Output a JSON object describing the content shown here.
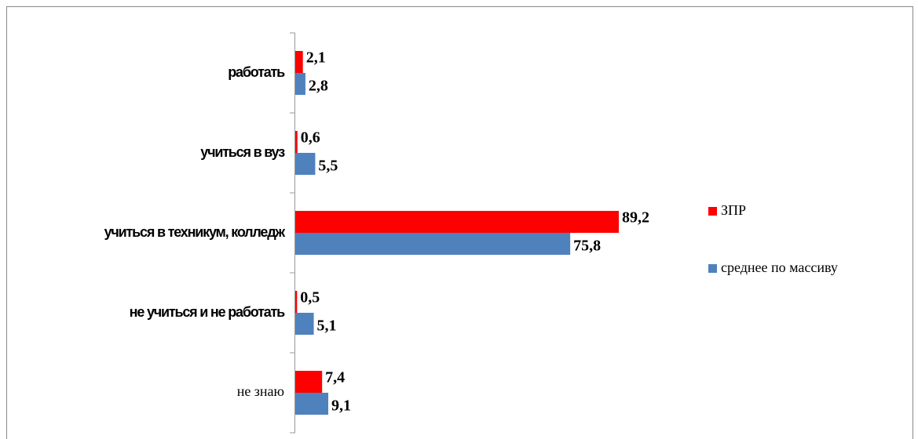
{
  "chart_data": {
    "type": "bar",
    "orientation": "horizontal",
    "categories": [
      "работать",
      "учиться в вуз",
      "учиться в техникум, колледж",
      "не учиться и не работать",
      "не знаю"
    ],
    "series": [
      {
        "name": "ЗПР",
        "color": "#ff0000",
        "values": [
          2.1,
          0.6,
          89.2,
          0.5,
          7.4
        ],
        "value_labels": [
          "2,1",
          "0,6",
          "89,2",
          "0,5",
          "7,4"
        ]
      },
      {
        "name": "среднее по массиву",
        "color": "#4f81bd",
        "values": [
          2.8,
          5.5,
          75.8,
          5.1,
          9.1
        ],
        "value_labels": [
          "2,8",
          "5,5",
          "75,8",
          "5,1",
          "9,1"
        ]
      }
    ]
  }
}
